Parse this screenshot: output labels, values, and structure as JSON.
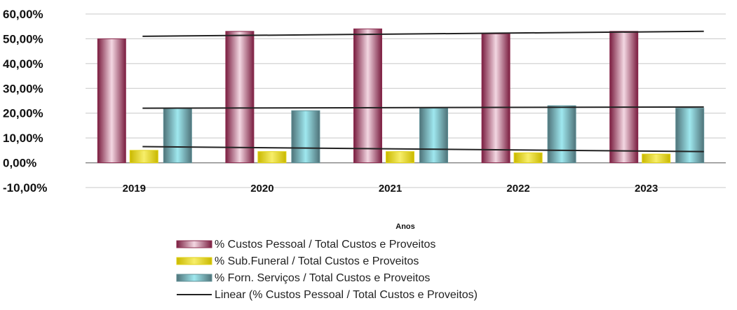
{
  "chart_data": {
    "type": "bar",
    "categories": [
      "2019",
      "2020",
      "2021",
      "2022",
      "2023"
    ],
    "xlabel": "Anos",
    "ylabel": "",
    "ylim": [
      -0.1,
      0.6
    ],
    "yticks": [
      "-10,00%",
      "0,00%",
      "10,00%",
      "20,00%",
      "30,00%",
      "40,00%",
      "50,00%",
      "60,00%"
    ],
    "grid": true,
    "legend_position": "bottom",
    "series": [
      {
        "name": "% Custos Pessoal / Total Custos e Proveitos",
        "values": [
          0.5,
          0.53,
          0.54,
          0.52,
          0.53
        ],
        "color": "#8b2b4e"
      },
      {
        "name": "% Sub.Funeral / Total Custos e Proveitos",
        "values": [
          0.05,
          0.045,
          0.045,
          0.04,
          0.035
        ],
        "color": "#e0d21a"
      },
      {
        "name": "% Forn. Serviços / Total Custos e Proveitos",
        "values": [
          0.22,
          0.21,
          0.22,
          0.23,
          0.22
        ],
        "color": "#5f8f96"
      }
    ],
    "trendlines": [
      {
        "name": "Linear (% Custos Pessoal / Total Custos e Proveitos)",
        "of_series": 0,
        "start": 0.51,
        "end": 0.53,
        "color": "#222222"
      },
      {
        "of_series": 2,
        "start": 0.22,
        "end": 0.225,
        "color": "#222222"
      },
      {
        "of_series": 1,
        "start": 0.065,
        "end": 0.045,
        "color": "#222222"
      }
    ]
  }
}
